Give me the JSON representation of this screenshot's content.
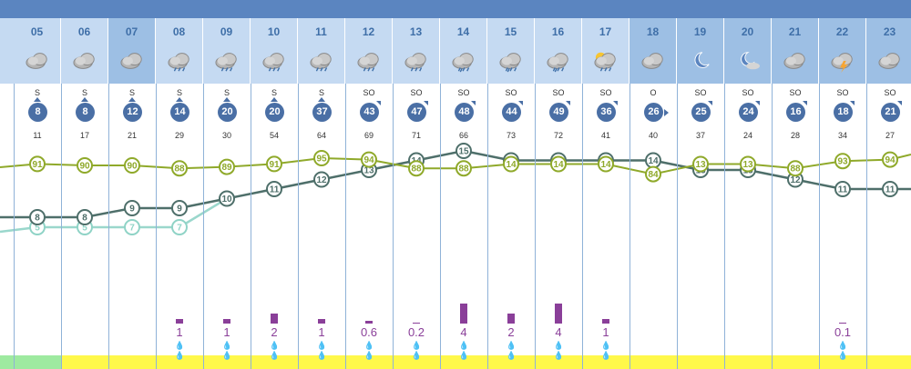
{
  "colors": {
    "topbar": "#5b85c0",
    "header_day": "#c5daf2",
    "header_night": "#9dbfe4",
    "humidity_line": "#8fa92a",
    "temp_line": "#4e6f6a",
    "feels_line": "#8fd3c6",
    "rain_bar": "#8a3f99",
    "bottom_bar_green": "#9eeaa0",
    "bottom_bar_yellow": "#fff84a"
  },
  "columns": [
    {
      "hour": "05",
      "icon": "cloud-icon",
      "night": false,
      "dir": "S",
      "speed": "8",
      "arrow": "up",
      "gust": "11",
      "humidity": 91,
      "temp": 8,
      "feels": 5,
      "rain": null
    },
    {
      "hour": "06",
      "icon": "cloud-icon",
      "night": false,
      "dir": "S",
      "speed": "8",
      "arrow": "up",
      "gust": "17",
      "humidity": 90,
      "temp": 8,
      "feels": 5,
      "rain": null
    },
    {
      "hour": "07",
      "icon": "cloud-icon",
      "night": true,
      "dir": "S",
      "speed": "12",
      "arrow": "up",
      "gust": "21",
      "humidity": 90,
      "temp": 9,
      "feels": 7,
      "rain": null
    },
    {
      "hour": "08",
      "icon": "rain-cloud-icon",
      "night": false,
      "dir": "S",
      "speed": "14",
      "arrow": "up",
      "gust": "29",
      "humidity": 88,
      "temp": 9,
      "feels": 7,
      "rain": "1"
    },
    {
      "hour": "09",
      "icon": "rain-cloud-icon",
      "night": false,
      "dir": "S",
      "speed": "20",
      "arrow": "up",
      "gust": "30",
      "humidity": 89,
      "temp": 10,
      "feels": 10,
      "rain": "1"
    },
    {
      "hour": "10",
      "icon": "rain-cloud-icon",
      "night": false,
      "dir": "S",
      "speed": "20",
      "arrow": "up",
      "gust": "54",
      "humidity": 91,
      "temp": 11,
      "feels": 11,
      "rain": "2"
    },
    {
      "hour": "11",
      "icon": "rain-cloud-icon",
      "night": false,
      "dir": "S",
      "speed": "37",
      "arrow": "up",
      "gust": "64",
      "humidity": 95,
      "temp": 12,
      "feels": 12,
      "rain": "1"
    },
    {
      "hour": "12",
      "icon": "rain-cloud-icon",
      "night": false,
      "dir": "SO",
      "speed": "43",
      "arrow": "ne",
      "gust": "69",
      "humidity": 94,
      "temp": 13,
      "feels": 13,
      "rain": "0.6"
    },
    {
      "hour": "13",
      "icon": "rain-cloud-icon",
      "night": false,
      "dir": "SO",
      "speed": "47",
      "arrow": "ne",
      "gust": "71",
      "humidity": 88,
      "temp": 14,
      "feels": 14,
      "rain": "0.2"
    },
    {
      "hour": "14",
      "icon": "heavy-rain-cloud-icon",
      "night": false,
      "dir": "SO",
      "speed": "48",
      "arrow": "ne",
      "gust": "66",
      "humidity": 88,
      "temp": 15,
      "feels": 15,
      "rain": "4"
    },
    {
      "hour": "15",
      "icon": "heavy-rain-cloud-icon",
      "night": false,
      "dir": "SO",
      "speed": "44",
      "arrow": "ne",
      "gust": "73",
      "humidity": 14,
      "temp": 14,
      "feels": 14,
      "rain": "2"
    },
    {
      "hour": "16",
      "icon": "heavy-rain-cloud-icon",
      "night": false,
      "dir": "SO",
      "speed": "49",
      "arrow": "ne",
      "gust": "72",
      "humidity": 14,
      "temp": 14,
      "feels": 14,
      "rain": "4"
    },
    {
      "hour": "17",
      "icon": "sun-cloud-rain-icon",
      "night": false,
      "dir": "SO",
      "speed": "36",
      "arrow": "ne",
      "gust": "41",
      "humidity": 14,
      "temp": 14,
      "feels": 14,
      "rain": "1"
    },
    {
      "hour": "18",
      "icon": "cloud-icon",
      "night": true,
      "dir": "O",
      "speed": "26",
      "arrow": "right",
      "gust": "40",
      "humidity": 84,
      "temp": 14,
      "feels": 14,
      "rain": null
    },
    {
      "hour": "19",
      "icon": "moon-icon",
      "night": true,
      "dir": "SO",
      "speed": "25",
      "arrow": "ne",
      "gust": "37",
      "humidity": 13,
      "temp": 13,
      "feels": 13,
      "rain": null
    },
    {
      "hour": "20",
      "icon": "moon-cloud-icon",
      "night": true,
      "dir": "SO",
      "speed": "24",
      "arrow": "ne",
      "gust": "24",
      "humidity": 13,
      "temp": 13,
      "feels": 13,
      "rain": null
    },
    {
      "hour": "21",
      "icon": "cloud-icon",
      "night": true,
      "dir": "SO",
      "speed": "16",
      "arrow": "ne",
      "gust": "28",
      "humidity": 88,
      "temp": 12,
      "feels": 12,
      "rain": null
    },
    {
      "hour": "22",
      "icon": "thunder-cloud-icon",
      "night": true,
      "dir": "SO",
      "speed": "18",
      "arrow": "ne",
      "gust": "34",
      "humidity": 93,
      "temp": 11,
      "feels": 11,
      "rain": "0.1"
    },
    {
      "hour": "23",
      "icon": "cloud-icon",
      "night": true,
      "dir": "SO",
      "speed": "21",
      "arrow": "ne",
      "gust": "27",
      "humidity": 94,
      "temp": 11,
      "feels": 11,
      "rain": null
    }
  ]
}
